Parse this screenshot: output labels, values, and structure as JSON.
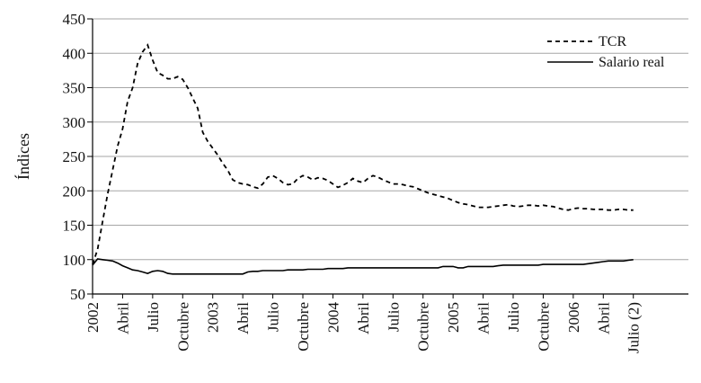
{
  "chart_data": {
    "type": "line",
    "title": "",
    "xlabel": "",
    "ylabel": "Índices",
    "ylim": [
      50,
      450
    ],
    "yticks": [
      50,
      100,
      150,
      200,
      250,
      300,
      350,
      400,
      450
    ],
    "grid": "horizontal",
    "legend_position": "top-right",
    "x_tick_labels": [
      "2002",
      "Abril",
      "Julio",
      "Octubre",
      "2003",
      "Abril",
      "Julio",
      "Octubre",
      "2004",
      "Abril",
      "Julio",
      "Octubre",
      "2005",
      "Abril",
      "Julio",
      "Octubre",
      "2006",
      "Abril",
      "Julio (2)"
    ],
    "x": [
      "2002-01-01",
      "2002-01-15",
      "2002-02-01",
      "2002-02-15",
      "2002-03-01",
      "2002-03-15",
      "2002-04-01",
      "2002-04-15",
      "2002-05-01",
      "2002-05-15",
      "2002-06-01",
      "2002-06-15",
      "2002-07-01",
      "2002-07-15",
      "2002-08-01",
      "2002-08-15",
      "2002-09-01",
      "2002-09-15",
      "2002-10-01",
      "2002-10-15",
      "2002-11-01",
      "2002-11-15",
      "2002-12-01",
      "2002-12-15",
      "2003-01-01",
      "2003-01-15",
      "2003-02-01",
      "2003-02-15",
      "2003-03-01",
      "2003-03-15",
      "2003-04-01",
      "2003-04-15",
      "2003-05-01",
      "2003-05-15",
      "2003-06-01",
      "2003-06-15",
      "2003-07-01",
      "2003-07-15",
      "2003-08-01",
      "2003-08-15",
      "2003-09-01",
      "2003-09-15",
      "2003-10-01",
      "2003-10-15",
      "2003-11-01",
      "2003-11-15",
      "2003-12-01",
      "2003-12-15",
      "2004-01-01",
      "2004-01-15",
      "2004-02-01",
      "2004-02-15",
      "2004-03-01",
      "2004-03-15",
      "2004-04-01",
      "2004-04-15",
      "2004-05-01",
      "2004-05-15",
      "2004-06-01",
      "2004-06-15",
      "2004-07-01",
      "2004-07-15",
      "2004-08-01",
      "2004-08-15",
      "2004-09-01",
      "2004-09-15",
      "2004-10-01",
      "2004-10-15",
      "2004-11-01",
      "2004-11-15",
      "2004-12-01",
      "2004-12-15",
      "2005-01-01",
      "2005-01-15",
      "2005-02-01",
      "2005-02-15",
      "2005-03-01",
      "2005-03-15",
      "2005-04-01",
      "2005-04-15",
      "2005-05-01",
      "2005-05-15",
      "2005-06-01",
      "2005-06-15",
      "2005-07-01",
      "2005-07-15",
      "2005-08-01",
      "2005-08-15",
      "2005-09-01",
      "2005-09-15",
      "2005-10-01",
      "2005-10-15",
      "2005-11-01",
      "2005-11-15",
      "2005-12-01",
      "2005-12-15",
      "2006-01-01",
      "2006-01-15",
      "2006-02-01",
      "2006-02-15",
      "2006-03-01",
      "2006-03-15",
      "2006-04-01",
      "2006-04-15",
      "2006-05-01",
      "2006-05-15",
      "2006-06-01",
      "2006-06-15",
      "2006-07-01"
    ],
    "series": [
      {
        "name": "TCR",
        "color": "#000000",
        "dash": "dashed",
        "values": [
          93,
          115,
          155,
          195,
          230,
          265,
          290,
          330,
          350,
          385,
          402,
          412,
          390,
          372,
          368,
          363,
          363,
          366,
          362,
          350,
          335,
          320,
          285,
          272,
          262,
          252,
          240,
          230,
          216,
          212,
          210,
          209,
          206,
          204,
          210,
          220,
          222,
          218,
          212,
          209,
          210,
          218,
          222,
          220,
          216,
          219,
          218,
          215,
          210,
          205,
          208,
          212,
          218,
          214,
          212,
          218,
          222,
          220,
          216,
          213,
          210,
          210,
          209,
          207,
          206,
          203,
          200,
          197,
          195,
          193,
          191,
          189,
          186,
          183,
          181,
          180,
          178,
          176,
          176,
          176,
          177,
          178,
          179,
          180,
          178,
          177,
          178,
          179,
          179,
          178,
          179,
          178,
          177,
          175,
          173,
          172,
          174,
          175,
          174,
          174,
          173,
          173,
          173,
          172,
          172,
          173,
          173,
          172,
          172
        ]
      },
      {
        "name": "Salario real",
        "color": "#000000",
        "dash": "solid",
        "values": [
          92,
          101,
          100,
          99,
          98,
          95,
          91,
          88,
          85,
          84,
          82,
          80,
          83,
          84,
          83,
          80,
          79,
          79,
          79,
          79,
          79,
          79,
          79,
          79,
          79,
          79,
          79,
          79,
          79,
          79,
          79,
          82,
          83,
          83,
          84,
          84,
          84,
          84,
          84,
          85,
          85,
          85,
          85,
          86,
          86,
          86,
          86,
          87,
          87,
          87,
          87,
          88,
          88,
          88,
          88,
          88,
          88,
          88,
          88,
          88,
          88,
          88,
          88,
          88,
          88,
          88,
          88,
          88,
          88,
          88,
          90,
          90,
          90,
          88,
          88,
          90,
          90,
          90,
          90,
          90,
          90,
          91,
          92,
          92,
          92,
          92,
          92,
          92,
          92,
          92,
          93,
          93,
          93,
          93,
          93,
          93,
          93,
          93,
          93,
          94,
          95,
          96,
          97,
          98,
          98,
          98,
          98,
          99,
          100
        ]
      }
    ]
  }
}
